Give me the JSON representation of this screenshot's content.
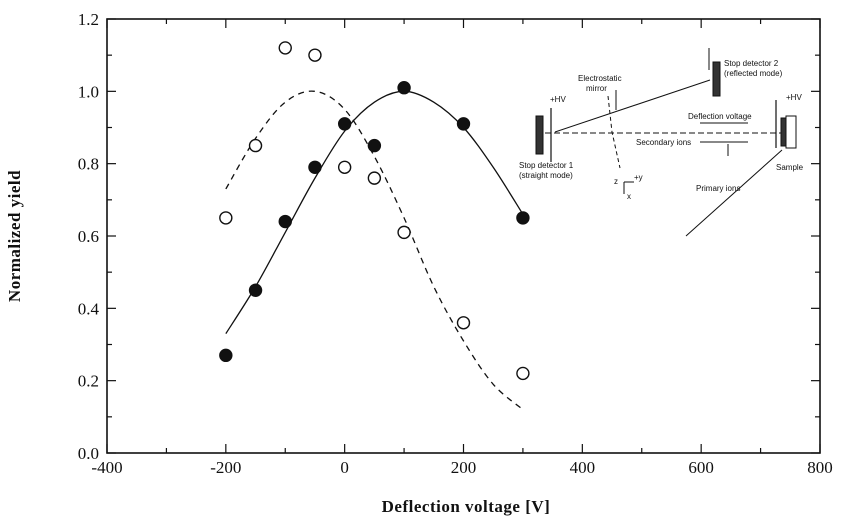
{
  "chart_data": {
    "type": "scatter",
    "xlabel": "Deflection voltage  [V]",
    "ylabel": "Normalized  yield",
    "xlim": [
      -400,
      800
    ],
    "ylim": [
      0.0,
      1.2
    ],
    "xticks": [
      "-400",
      "-200",
      "0",
      "200",
      "400",
      "600",
      "800"
    ],
    "yticks": [
      "0.0",
      "0.2",
      "0.4",
      "0.6",
      "0.8",
      "1.0",
      "1.2"
    ],
    "grid": false,
    "series": [
      {
        "marker": "filled-circle",
        "line": "solid",
        "x": [
          -200,
          -150,
          -100,
          -50,
          0,
          50,
          100,
          200,
          300
        ],
        "y": [
          0.27,
          0.45,
          0.64,
          0.79,
          0.91,
          0.85,
          1.01,
          0.91,
          0.65
        ]
      },
      {
        "marker": "open-circle",
        "line": "dashed",
        "x": [
          -200,
          -150,
          -100,
          -50,
          0,
          50,
          100,
          200,
          300
        ],
        "y": [
          0.65,
          0.85,
          1.12,
          1.1,
          0.79,
          0.76,
          0.61,
          0.36,
          0.22
        ]
      }
    ],
    "fits": [
      {
        "style": "solid",
        "x": [
          -200,
          -150,
          -100,
          -50,
          0,
          50,
          100,
          150,
          200,
          250,
          300
        ],
        "y": [
          0.33,
          0.46,
          0.61,
          0.76,
          0.89,
          0.97,
          1.0,
          0.97,
          0.9,
          0.79,
          0.66
        ]
      },
      {
        "style": "dashed",
        "x": [
          -200,
          -150,
          -100,
          -50,
          0,
          50,
          100,
          150,
          200,
          250,
          300
        ],
        "y": [
          0.73,
          0.87,
          0.97,
          1.0,
          0.95,
          0.82,
          0.65,
          0.46,
          0.31,
          0.19,
          0.12
        ]
      }
    ],
    "inset_labels": {
      "stop_detector_2": "Stop detector 2",
      "reflected_mode": "(reflected mode)",
      "electrostatic": "Electrostatic",
      "mirror": "mirror",
      "hv_left": "+HV",
      "hv_right": "+HV",
      "deflection_voltage": "Deflection voltage",
      "secondary_ions": "Secondary ions",
      "stop_detector_1": "Stop detector 1",
      "straight_mode": "(straight mode)",
      "sample": "Sample",
      "primary_ions": "Primary ions",
      "axis_z": "z",
      "axis_y": "+y",
      "axis_x": "x"
    }
  }
}
